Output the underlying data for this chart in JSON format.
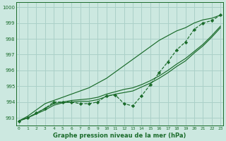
{
  "title": "Graphe pression niveau de la mer (hPa)",
  "bg_color": "#cce8e0",
  "grid_color": "#aad0c8",
  "line_color": "#1a6b2a",
  "hours": [
    0,
    1,
    2,
    3,
    4,
    5,
    6,
    7,
    8,
    9,
    10,
    11,
    12,
    13,
    14,
    15,
    16,
    17,
    18,
    19,
    20,
    21,
    22,
    23
  ],
  "actual": [
    992.8,
    993.0,
    993.3,
    993.6,
    994.0,
    994.0,
    994.0,
    993.9,
    993.9,
    994.0,
    994.4,
    994.45,
    993.9,
    993.75,
    994.4,
    995.1,
    995.85,
    996.55,
    997.3,
    997.8,
    998.6,
    999.0,
    999.15,
    999.5
  ],
  "line_high": [
    992.8,
    993.1,
    993.5,
    993.9,
    994.1,
    994.3,
    994.5,
    994.7,
    994.9,
    995.2,
    995.5,
    995.9,
    996.3,
    996.7,
    997.1,
    997.5,
    997.9,
    998.2,
    998.5,
    998.7,
    999.0,
    999.2,
    999.3,
    999.5
  ],
  "line_mid1": [
    992.8,
    993.0,
    993.3,
    993.6,
    993.9,
    994.0,
    994.1,
    994.15,
    994.2,
    994.3,
    994.5,
    994.65,
    994.8,
    994.9,
    995.1,
    995.35,
    995.65,
    996.0,
    996.4,
    996.75,
    997.2,
    997.65,
    998.2,
    998.8
  ],
  "line_mid2": [
    992.8,
    993.0,
    993.25,
    993.5,
    993.8,
    993.95,
    994.0,
    994.05,
    994.05,
    994.15,
    994.35,
    994.5,
    994.6,
    994.7,
    994.95,
    995.2,
    995.5,
    995.85,
    996.25,
    996.6,
    997.1,
    997.55,
    998.1,
    998.7
  ],
  "ylim": [
    992.5,
    1000.3
  ],
  "yticks": [
    993,
    994,
    995,
    996,
    997,
    998,
    999,
    1000
  ],
  "xlim": [
    -0.3,
    23.3
  ],
  "xticks": [
    0,
    1,
    2,
    3,
    4,
    5,
    6,
    7,
    8,
    9,
    10,
    11,
    12,
    13,
    14,
    15,
    16,
    17,
    18,
    19,
    20,
    21,
    22,
    23
  ]
}
